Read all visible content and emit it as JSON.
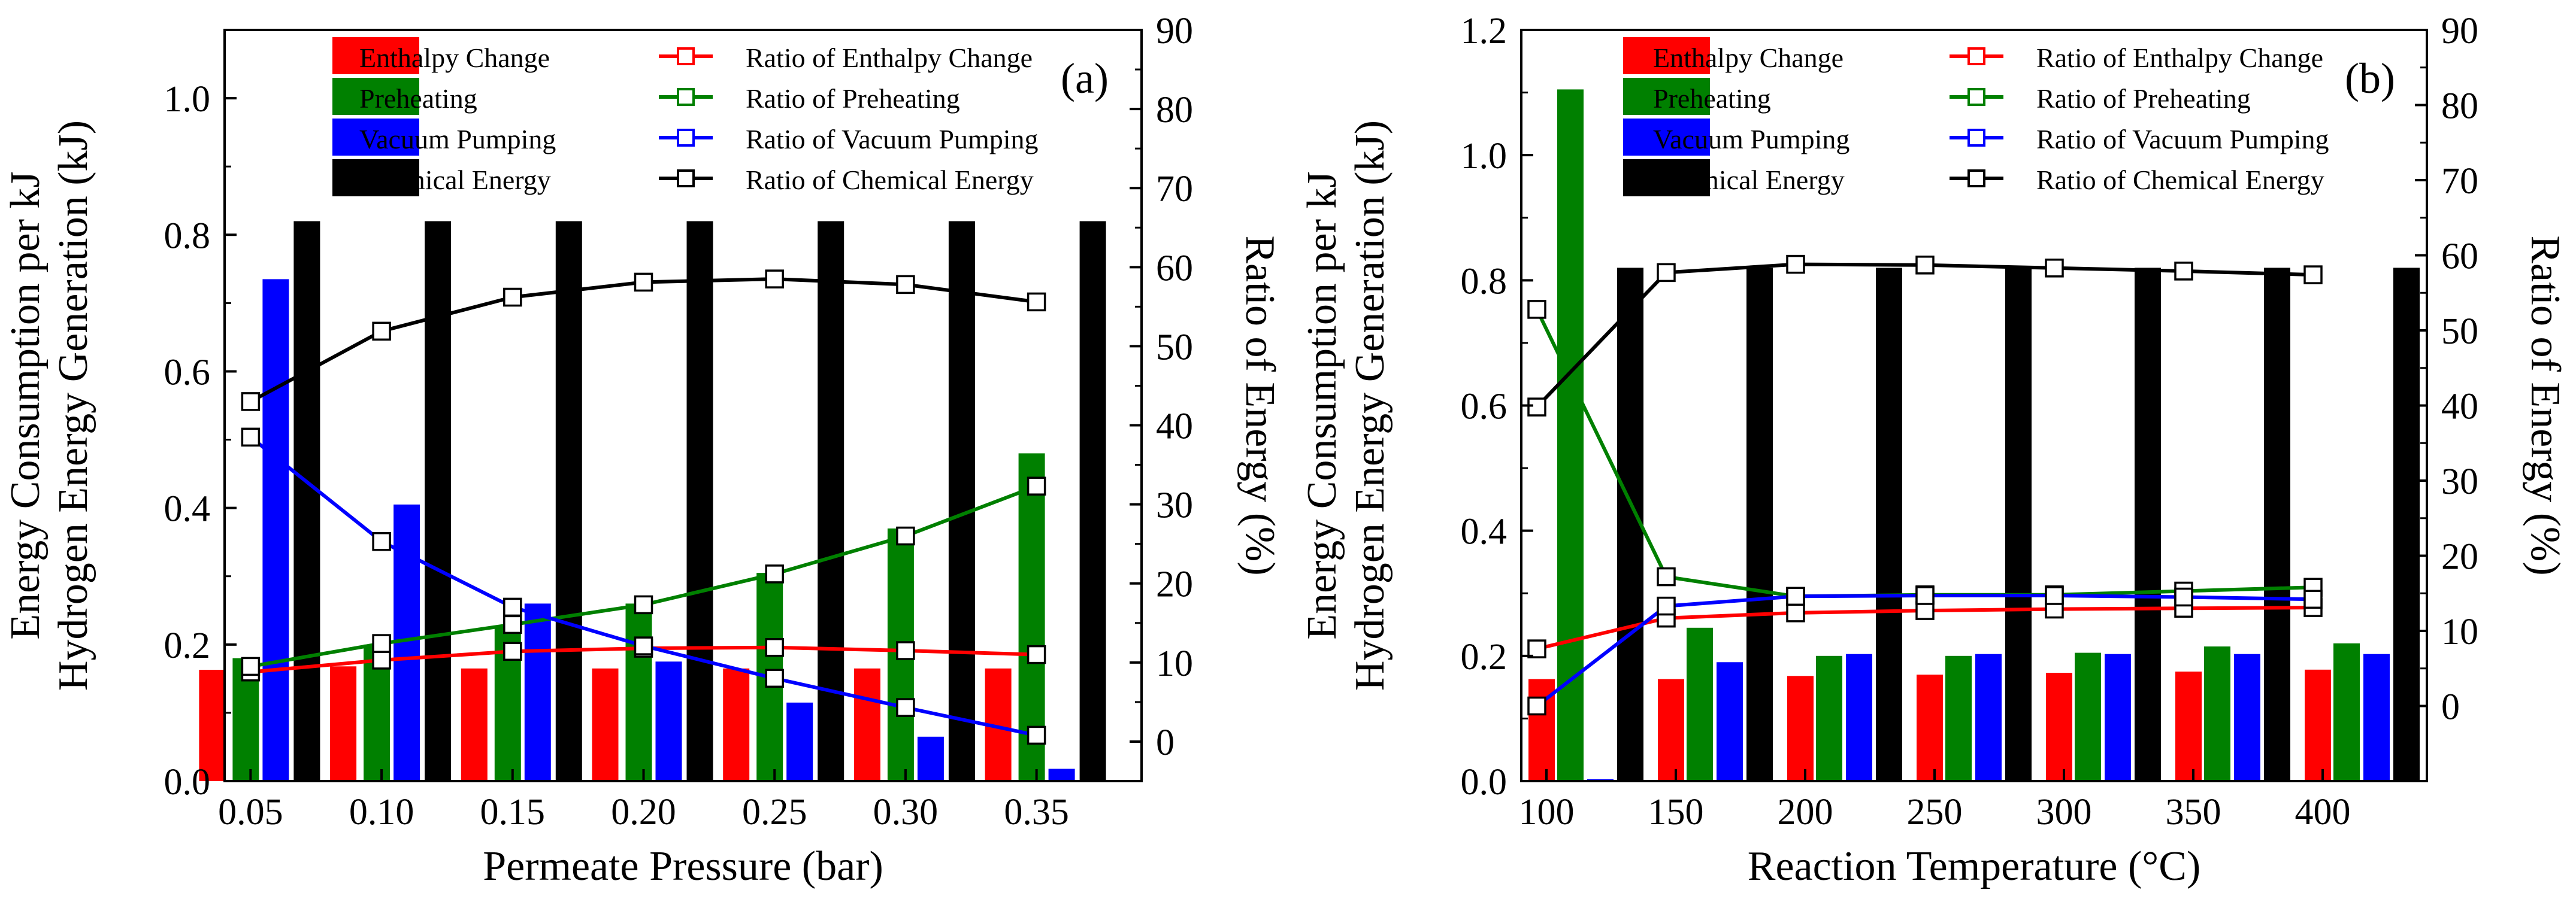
{
  "colors": {
    "enthalpy": "#ff0000",
    "preheating": "#008000",
    "vacuum": "#0000ff",
    "chemical": "#000000"
  },
  "chart_data": [
    {
      "type": "bar+line",
      "panel_label": "(a)",
      "xlabel": "Permeate Pressure (bar)",
      "ylabel_line1": "Energy Consumption per kJ",
      "ylabel_line2": "Hydrogen Energy Generation (kJ)",
      "y2label": "Ratio of Energy (%)",
      "categories": [
        "0.05",
        "0.10",
        "0.15",
        "0.20",
        "0.25",
        "0.30",
        "0.35"
      ],
      "ylim": [
        0,
        1.1
      ],
      "yticks": [
        "0.0",
        "0.2",
        "0.4",
        "0.6",
        "0.8",
        "1.0"
      ],
      "ytick_values": [
        0,
        0.2,
        0.4,
        0.6,
        0.8,
        1.0
      ],
      "y2lim": [
        -5,
        90
      ],
      "y2ticks": [
        "0",
        "10",
        "20",
        "30",
        "40",
        "50",
        "60",
        "70",
        "80",
        "90"
      ],
      "y2tick_values": [
        0,
        10,
        20,
        30,
        40,
        50,
        60,
        70,
        80,
        90
      ],
      "legend": {
        "bar_enthalpy": "Enthalpy Change",
        "bar_preheating": "Preheating",
        "bar_vacuum": "Vacuum Pumping",
        "bar_chemical": "Chemical Energy",
        "line_enthalpy": "Ratio of Enthalpy Change",
        "line_preheating": "Ratio of Preheating",
        "line_vacuum": "Ratio of Vacuum Pumping",
        "line_chemical": "Ratio of Chemical Energy"
      },
      "bar_series": [
        {
          "name": "Enthalpy Change",
          "color_key": "enthalpy",
          "values": [
            0.163,
            0.168,
            0.165,
            0.165,
            0.165,
            0.165,
            0.165
          ]
        },
        {
          "name": "Preheating",
          "color_key": "preheating",
          "values": [
            0.18,
            0.2,
            0.225,
            0.26,
            0.305,
            0.37,
            0.48
          ]
        },
        {
          "name": "Vacuum Pumping",
          "color_key": "vacuum",
          "values": [
            0.735,
            0.405,
            0.26,
            0.175,
            0.115,
            0.065,
            0.018
          ]
        },
        {
          "name": "Chemical Energy",
          "color_key": "chemical",
          "values": [
            0.82,
            0.82,
            0.82,
            0.82,
            0.82,
            0.82,
            0.82
          ]
        }
      ],
      "line_series": [
        {
          "name": "Ratio of Enthalpy Change",
          "color_key": "enthalpy",
          "values": [
            8.8,
            10.3,
            11.4,
            11.8,
            11.9,
            11.5,
            11.0
          ]
        },
        {
          "name": "Ratio of Preheating",
          "color_key": "preheating",
          "values": [
            9.5,
            12.4,
            14.8,
            17.3,
            21.2,
            26.0,
            32.3
          ]
        },
        {
          "name": "Ratio of Vacuum Pumping",
          "color_key": "vacuum",
          "values": [
            38.5,
            25.3,
            17.0,
            12.1,
            8.0,
            4.3,
            0.8
          ]
        },
        {
          "name": "Ratio of Chemical Energy",
          "color_key": "chemical",
          "values": [
            43.0,
            51.9,
            56.2,
            58.1,
            58.5,
            57.8,
            55.6
          ]
        }
      ]
    },
    {
      "type": "bar+line",
      "panel_label": "(b)",
      "xlabel": "Reaction Temperature (°C)",
      "ylabel_line1": "Energy Consumption per kJ",
      "ylabel_line2": "Hydrogen Energy Generation (kJ)",
      "y2label": "Ratio of Energy (%)",
      "categories": [
        "100",
        "150",
        "200",
        "250",
        "300",
        "350",
        "400"
      ],
      "ylim": [
        0,
        1.2
      ],
      "yticks": [
        "0.0",
        "0.2",
        "0.4",
        "0.6",
        "0.8",
        "1.0",
        "1.2"
      ],
      "ytick_values": [
        0,
        0.2,
        0.4,
        0.6,
        0.8,
        1.0,
        1.2
      ],
      "y2lim": [
        -10,
        90
      ],
      "y2ticks": [
        "0",
        "10",
        "20",
        "30",
        "40",
        "50",
        "60",
        "70",
        "80",
        "90"
      ],
      "y2tick_values": [
        0,
        10,
        20,
        30,
        40,
        50,
        60,
        70,
        80,
        90
      ],
      "legend": {
        "bar_enthalpy": "Enthalpy Change",
        "bar_preheating": "Preheating",
        "bar_vacuum": "Vacuum Pumping",
        "bar_chemical": "Chemical Energy",
        "line_enthalpy": "Ratio of Enthalpy Change",
        "line_preheating": "Ratio of Preheating",
        "line_vacuum": "Ratio of Vacuum Pumping",
        "line_chemical": "Ratio of Chemical Energy"
      },
      "bar_series": [
        {
          "name": "Enthalpy Change",
          "color_key": "enthalpy",
          "values": [
            0.163,
            0.163,
            0.168,
            0.17,
            0.173,
            0.175,
            0.178
          ]
        },
        {
          "name": "Preheating",
          "color_key": "preheating",
          "values": [
            1.105,
            0.245,
            0.2,
            0.2,
            0.205,
            0.215,
            0.22
          ]
        },
        {
          "name": "Vacuum Pumping",
          "color_key": "vacuum",
          "values": [
            0.003,
            0.19,
            0.203,
            0.203,
            0.203,
            0.203,
            0.203
          ]
        },
        {
          "name": "Chemical Energy",
          "color_key": "chemical",
          "values": [
            0.82,
            0.82,
            0.82,
            0.82,
            0.82,
            0.82,
            0.82
          ]
        }
      ],
      "line_series": [
        {
          "name": "Ratio of Enthalpy Change",
          "color_key": "enthalpy",
          "values": [
            7.6,
            11.7,
            12.4,
            12.7,
            12.9,
            13.0,
            13.1
          ]
        },
        {
          "name": "Ratio of Preheating",
          "color_key": "preheating",
          "values": [
            52.8,
            17.2,
            14.6,
            14.8,
            14.8,
            15.3,
            15.8
          ]
        },
        {
          "name": "Ratio of Vacuum Pumping",
          "color_key": "vacuum",
          "values": [
            0.0,
            13.3,
            14.6,
            14.7,
            14.7,
            14.5,
            14.2
          ]
        },
        {
          "name": "Ratio of Chemical Energy",
          "color_key": "chemical",
          "values": [
            39.8,
            57.7,
            58.8,
            58.7,
            58.3,
            57.9,
            57.4
          ]
        }
      ]
    }
  ]
}
